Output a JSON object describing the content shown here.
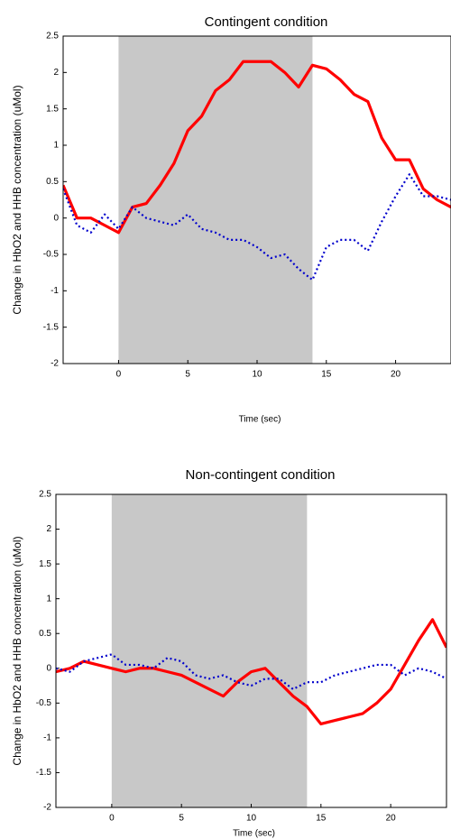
{
  "chart_data": [
    {
      "type": "line",
      "title": "Contingent condition",
      "xlabel": "Time (sec)",
      "ylabel": "Change in HbO2 and HHB concentration (uMol)",
      "x": [
        -4,
        -3,
        -2,
        -1,
        0,
        1,
        2,
        3,
        4,
        5,
        6,
        7,
        8,
        9,
        10,
        11,
        12,
        13,
        14,
        15,
        16,
        17,
        18,
        19,
        20,
        21,
        22,
        23,
        24
      ],
      "series": [
        {
          "color": "#ff0000",
          "linestyle": "solid",
          "values": [
            0.45,
            0.0,
            0.0,
            -0.1,
            -0.2,
            0.15,
            0.2,
            0.45,
            0.75,
            1.2,
            1.4,
            1.75,
            1.9,
            2.15,
            2.15,
            2.15,
            2.0,
            1.8,
            2.1,
            2.05,
            1.9,
            1.7,
            1.6,
            1.1,
            0.8,
            0.8,
            0.4,
            0.25,
            0.15
          ]
        },
        {
          "color": "#0000cc",
          "linestyle": "dotted",
          "values": [
            0.4,
            -0.1,
            -0.2,
            0.05,
            -0.15,
            0.15,
            0.0,
            -0.05,
            -0.1,
            0.05,
            -0.15,
            -0.2,
            -0.3,
            -0.3,
            -0.4,
            -0.55,
            -0.5,
            -0.7,
            -0.85,
            -0.4,
            -0.3,
            -0.3,
            -0.45,
            -0.05,
            0.3,
            0.6,
            0.3,
            0.3,
            0.25
          ]
        }
      ],
      "shade": [
        0,
        14
      ],
      "shade_color": "#c8c8c8",
      "xlim": [
        -4,
        24
      ],
      "xticks": [
        0,
        5,
        10,
        15,
        20
      ],
      "ylim": [
        -2,
        2.5
      ],
      "yticks": [
        -2,
        -1.5,
        -1,
        -0.5,
        0,
        0.5,
        1,
        1.5,
        2,
        2.5
      ]
    },
    {
      "type": "line",
      "title": "Non-contingent condition",
      "xlabel": "Time (sec)",
      "ylabel": "Change in HbO2 and HHB concentration (uMol)",
      "x": [
        -4,
        -3,
        -2,
        -1,
        0,
        1,
        2,
        3,
        4,
        5,
        6,
        7,
        8,
        9,
        10,
        11,
        12,
        13,
        14,
        15,
        16,
        17,
        18,
        19,
        20,
        21,
        22,
        23,
        24
      ],
      "series": [
        {
          "color": "#ff0000",
          "linestyle": "solid",
          "values": [
            -0.05,
            0.0,
            0.1,
            0.05,
            0.0,
            -0.05,
            0.0,
            0.0,
            -0.05,
            -0.1,
            -0.2,
            -0.3,
            -0.4,
            -0.2,
            -0.05,
            0.0,
            -0.2,
            -0.4,
            -0.55,
            -0.8,
            -0.75,
            -0.7,
            -0.65,
            -0.5,
            -0.3,
            0.05,
            0.4,
            0.7,
            0.3
          ]
        },
        {
          "color": "#0000cc",
          "linestyle": "dotted",
          "values": [
            0.0,
            -0.05,
            0.1,
            0.15,
            0.2,
            0.05,
            0.05,
            0.0,
            0.15,
            0.1,
            -0.1,
            -0.15,
            -0.1,
            -0.2,
            -0.25,
            -0.15,
            -0.15,
            -0.3,
            -0.2,
            -0.2,
            -0.1,
            -0.05,
            0.0,
            0.05,
            0.05,
            -0.1,
            0.0,
            -0.05,
            -0.15
          ]
        }
      ],
      "shade": [
        0,
        14
      ],
      "shade_color": "#c8c8c8",
      "xlim": [
        -4,
        24
      ],
      "xticks": [
        0,
        5,
        10,
        15,
        20
      ],
      "ylim": [
        -2,
        2.5
      ],
      "yticks": [
        -2,
        -1.5,
        -1,
        -0.5,
        0,
        0.5,
        1,
        1.5,
        2,
        2.5
      ]
    }
  ]
}
